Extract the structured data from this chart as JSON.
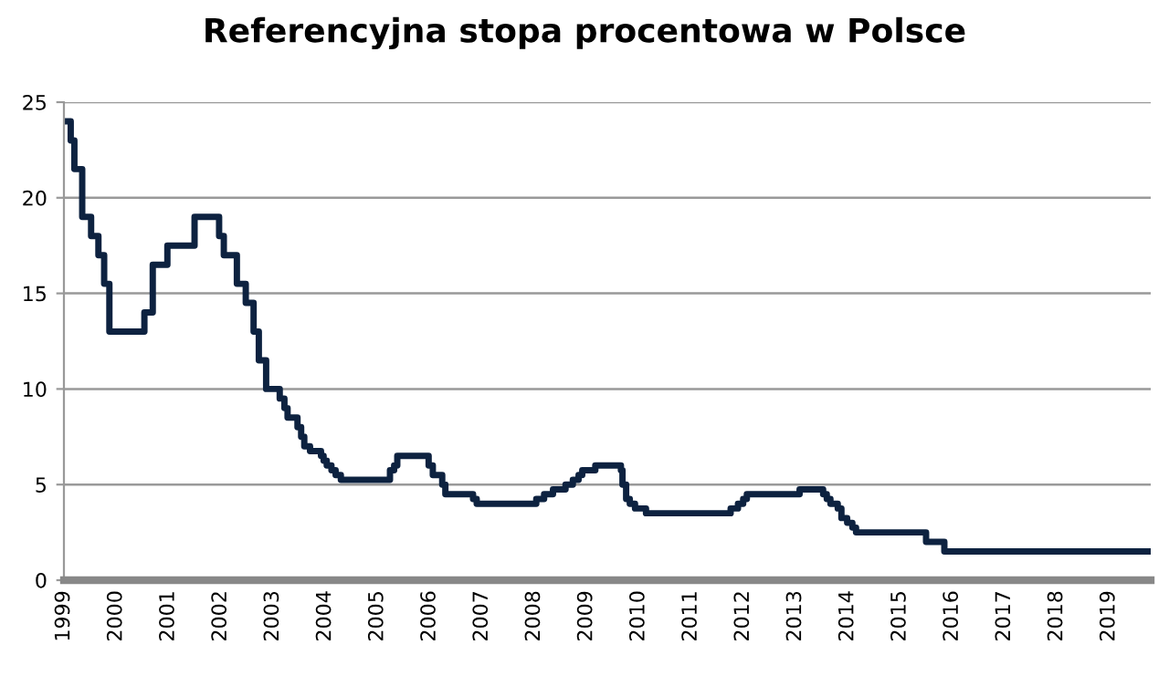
{
  "chart_data": {
    "type": "step",
    "title": "Referencyjna stopa procentowa w Polsce",
    "x": [
      1999.0,
      1999.13,
      1999.2,
      1999.35,
      1999.52,
      1999.66,
      1999.77,
      1999.87,
      2000.54,
      2000.7,
      2000.98,
      2001.5,
      2001.97,
      2002.06,
      2002.31,
      2002.48,
      2002.63,
      2002.73,
      2002.87,
      2003.13,
      2003.22,
      2003.28,
      2003.47,
      2003.54,
      2003.6,
      2003.71,
      2003.92,
      2003.97,
      2004.03,
      2004.12,
      2004.2,
      2004.3,
      2005.24,
      2005.32,
      2005.38,
      2005.98,
      2006.06,
      2006.24,
      2006.3,
      2006.83,
      2006.9,
      2008.04,
      2008.19,
      2008.36,
      2008.6,
      2008.74,
      2008.85,
      2008.92,
      2009.17,
      2009.66,
      2009.69,
      2009.76,
      2009.83,
      2009.93,
      2010.14,
      2011.76,
      2011.9,
      2012.0,
      2012.07,
      2013.08,
      2013.53,
      2013.6,
      2013.67,
      2013.81,
      2013.88,
      2013.99,
      2014.09,
      2014.16,
      2015.5,
      2015.85,
      2019.8
    ],
    "series": [
      {
        "color": "#0d2240",
        "values": [
          24,
          23,
          21.5,
          19,
          18,
          17,
          15.5,
          13,
          14,
          16.5,
          17.5,
          19,
          18,
          17,
          15.5,
          14.5,
          13,
          11.5,
          10,
          9.5,
          9,
          8.5,
          8,
          7.5,
          7,
          6.75,
          6.5,
          6.25,
          6,
          5.75,
          5.5,
          5.25,
          5.75,
          6,
          6.5,
          6,
          5.5,
          5,
          4.5,
          4.25,
          4,
          4.25,
          4.5,
          4.75,
          5,
          5.25,
          5.5,
          5.75,
          6,
          5.75,
          5,
          4.25,
          4,
          3.75,
          3.5,
          3.75,
          4,
          4.25,
          4.5,
          4.75,
          4.5,
          4.25,
          4,
          3.75,
          3.25,
          3,
          2.75,
          2.5,
          2,
          1.5,
          1.5
        ]
      }
    ],
    "xlim": [
      1999,
      2019.8
    ],
    "xticks": [
      1999,
      2000,
      2001,
      2002,
      2003,
      2004,
      2005,
      2006,
      2007,
      2008,
      2009,
      2010,
      2011,
      2012,
      2013,
      2014,
      2015,
      2016,
      2017,
      2018,
      2019
    ],
    "ylim": [
      0,
      25
    ],
    "yticks": [
      0,
      5,
      10,
      15,
      20,
      25
    ],
    "grid": "y",
    "line_style": "solid",
    "marker": "none"
  }
}
